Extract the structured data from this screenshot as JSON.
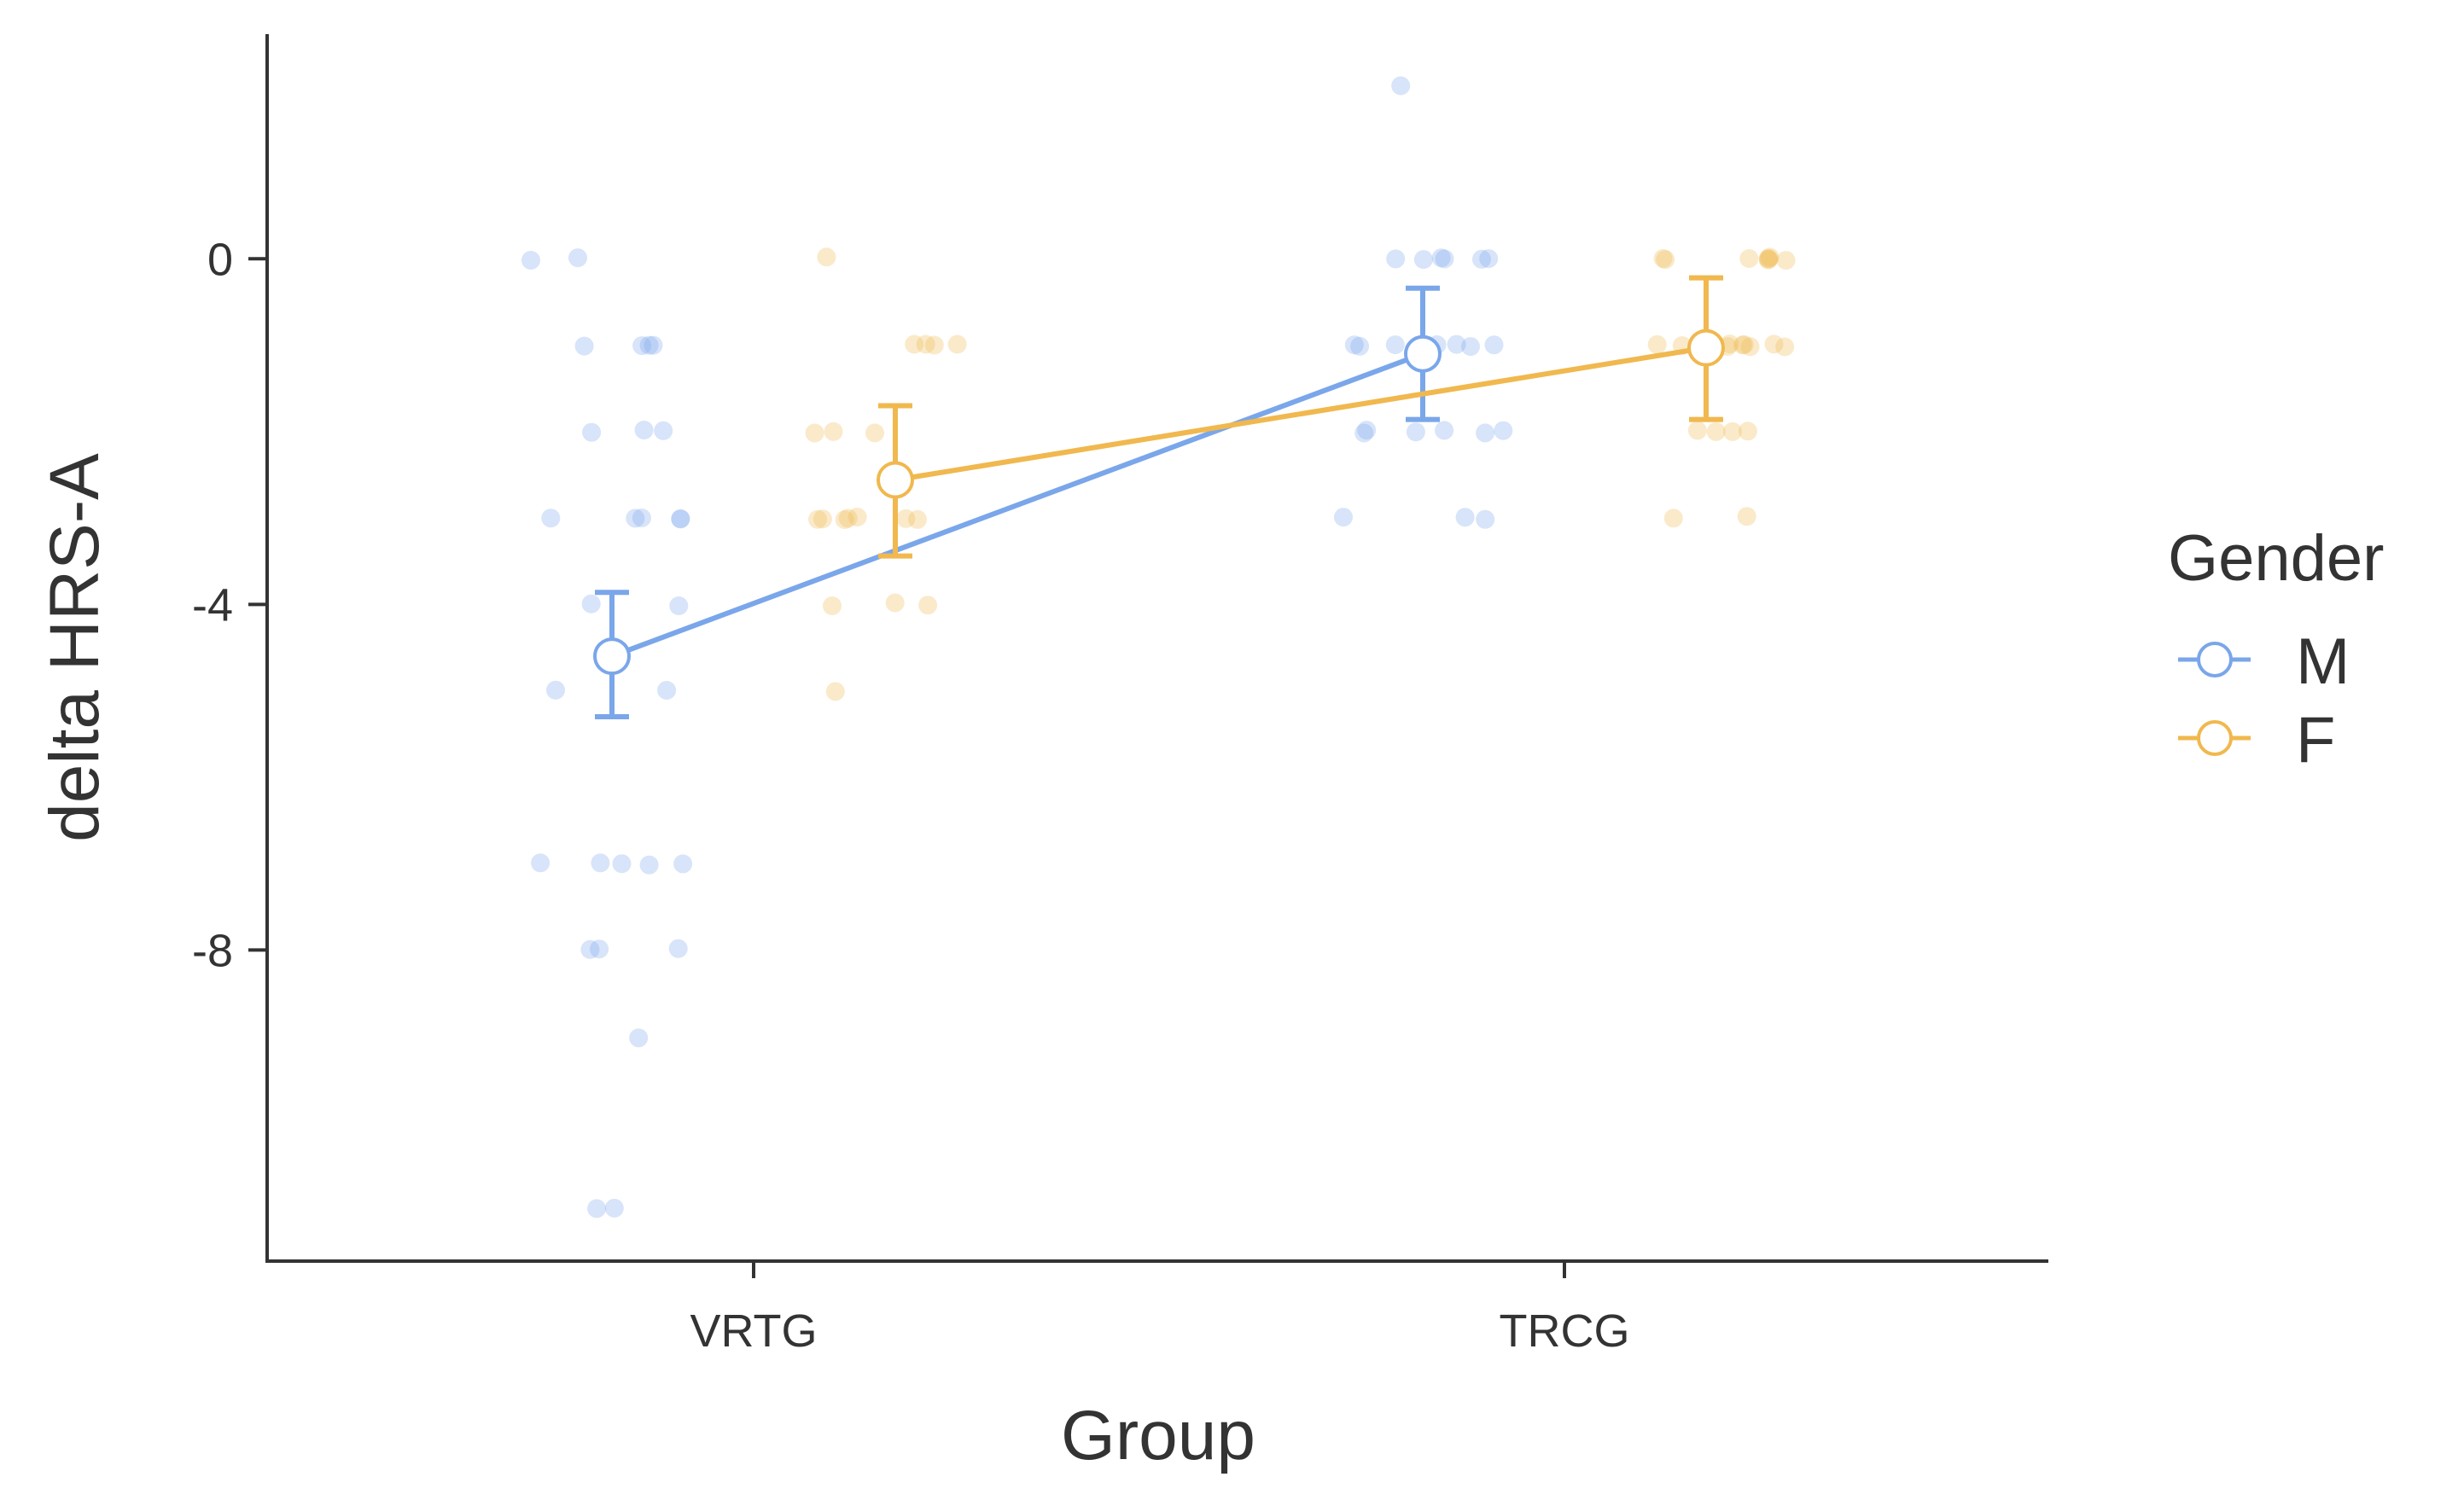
{
  "chart_data": {
    "type": "scatter",
    "title": "",
    "xlabel": "Group",
    "ylabel": "delta HRS-A",
    "categories": [
      "VRTG",
      "TRCG"
    ],
    "ylim": [
      -11.6,
      2.6
    ],
    "yticks": [
      0,
      -4,
      -8
    ],
    "ytick_labels": [
      "0",
      "-4",
      "-8"
    ],
    "grid": false,
    "legend": {
      "title": "Gender",
      "position": "right",
      "entries": [
        "M",
        "F"
      ]
    },
    "series": [
      {
        "name": "M",
        "color": "#7AA6EA",
        "means": [
          -4.6,
          -1.1
        ],
        "ci_low": [
          -5.3,
          -1.86
        ],
        "ci_high": [
          -3.86,
          -0.34
        ],
        "raw": [
          [
            0,
            0,
            -1,
            -1,
            -1,
            -1,
            -2,
            -2,
            -2,
            -3,
            -3,
            -3,
            -3,
            -3,
            -4,
            -4,
            -5,
            -5,
            -7,
            -7,
            -7,
            -7,
            -7,
            -8,
            -8,
            -8,
            -9,
            -11,
            -11
          ],
          [
            2,
            0,
            0,
            0,
            0,
            0,
            0,
            -1,
            -1,
            -1,
            -1,
            -1,
            -1,
            -1,
            -2,
            -2,
            -2,
            -2,
            -2,
            -2,
            -3,
            -3,
            -3
          ]
        ]
      },
      {
        "name": "F",
        "color": "#F0B84E",
        "means": [
          -2.56,
          -1.03
        ],
        "ci_low": [
          -3.44,
          -1.86
        ],
        "ci_high": [
          -1.7,
          -0.22
        ],
        "raw": [
          [
            0,
            -1,
            -1,
            -1,
            -1,
            -2,
            -2,
            -2,
            -3,
            -3,
            -3,
            -3,
            -3,
            -3,
            -3,
            -4,
            -4,
            -4,
            -5
          ],
          [
            0,
            0,
            0,
            0,
            0,
            0,
            0,
            0,
            -1,
            -1,
            -1,
            -1,
            -1,
            -1,
            -1,
            -1,
            -1,
            -1,
            -1,
            -2,
            -2,
            -2,
            -2,
            -3,
            -3
          ]
        ]
      }
    ]
  }
}
